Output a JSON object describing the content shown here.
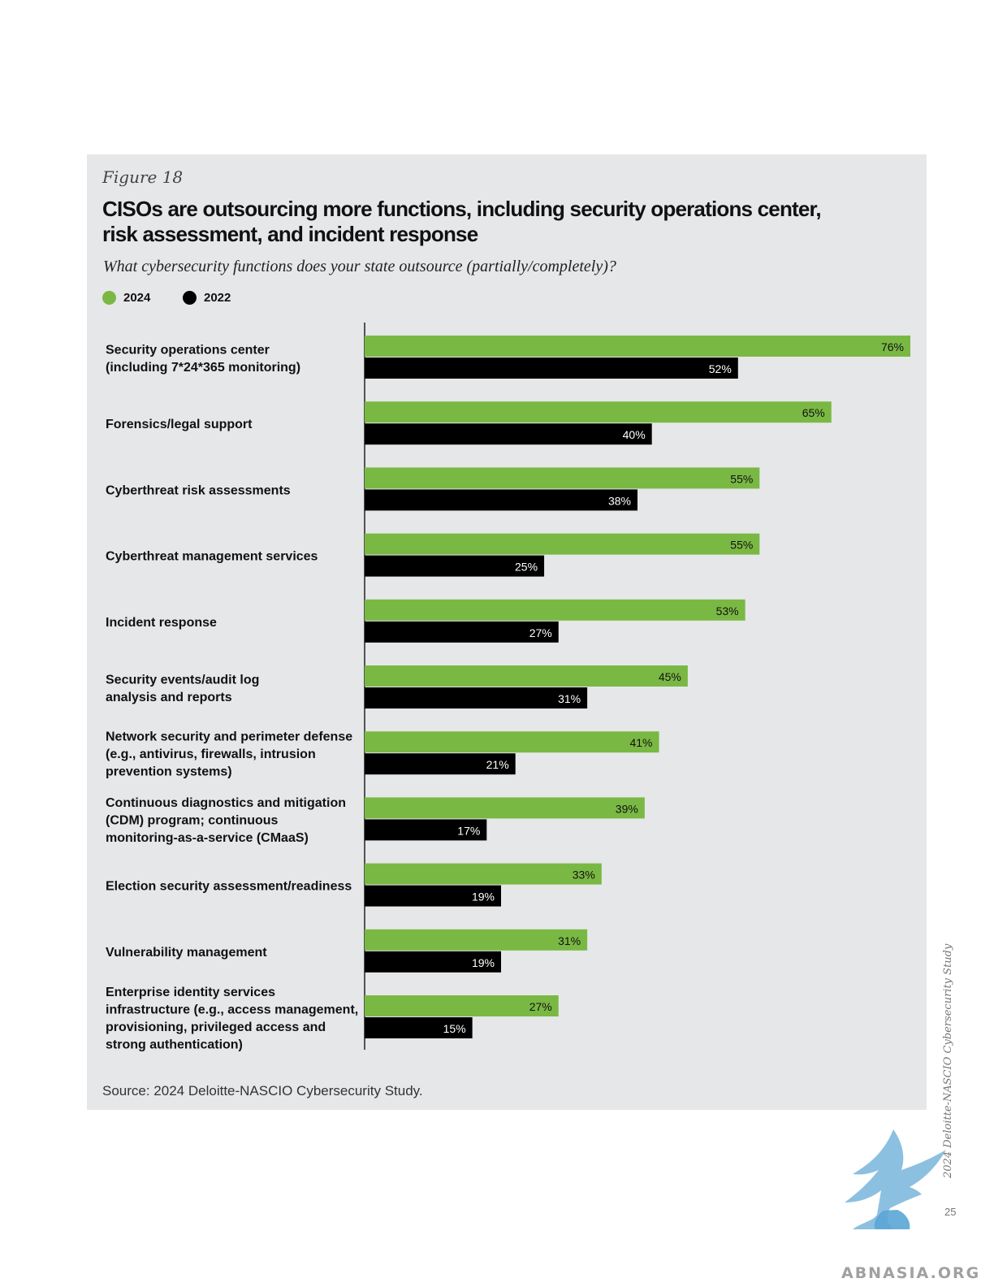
{
  "figure": {
    "label": "Figure 18",
    "title": "CISOs are outsourcing more functions, including security operations center, risk assessment, and incident response",
    "subtitle": "What cybersecurity functions does your state outsource (partially/completely)?",
    "source": "Source: 2024 Deloitte-NASCIO Cybersecurity Study."
  },
  "legend": [
    {
      "name": "2024",
      "color": "#7ab844"
    },
    {
      "name": "2022",
      "color": "#000000"
    }
  ],
  "chart_data": {
    "type": "bar",
    "orientation": "horizontal",
    "categories": [
      [
        "Security operations center",
        "(including 7*24*365 monitoring)"
      ],
      [
        "Forensics/legal support"
      ],
      [
        "Cyberthreat risk assessments"
      ],
      [
        "Cyberthreat management services"
      ],
      [
        "Incident response"
      ],
      [
        "Security events/audit log",
        "analysis and reports"
      ],
      [
        "Network security and perimeter defense",
        "(e.g., antivirus, firewalls, intrusion",
        "prevention systems)"
      ],
      [
        "Continuous diagnostics and mitigation",
        "(CDM) program; continuous",
        "monitoring-as-a-service (CMaaS)"
      ],
      [
        "Election security assessment/readiness"
      ],
      [
        "Vulnerability management"
      ],
      [
        "Enterprise identity services",
        "infrastructure (e.g., access management,",
        "provisioning, privileged access and",
        "strong authentication)"
      ]
    ],
    "series": [
      {
        "name": "2024",
        "color": "#7ab844",
        "label_color": "#111111",
        "values": [
          76,
          65,
          55,
          55,
          53,
          45,
          41,
          39,
          33,
          31,
          27
        ]
      },
      {
        "name": "2022",
        "color": "#000000",
        "label_color": "#ffffff",
        "values": [
          52,
          40,
          38,
          25,
          27,
          31,
          21,
          17,
          19,
          19,
          15
        ]
      }
    ],
    "value_suffix": "%",
    "xlim": [
      0,
      76
    ],
    "grid": false,
    "legend_position": "top-left"
  },
  "page": {
    "running_head": "2024 Deloitte-NASCIO Cybersecurity Study",
    "page_number": "25",
    "watermark": "ABNASIA.ORG"
  }
}
